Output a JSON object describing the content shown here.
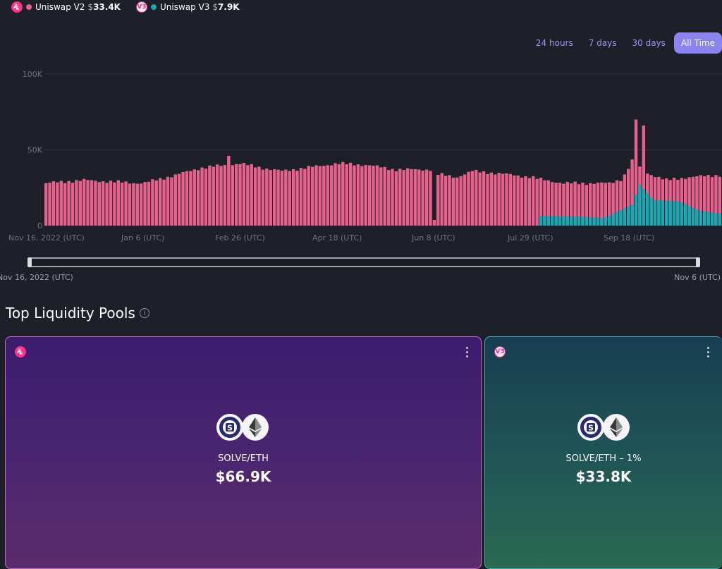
{
  "legend": [
    {
      "name": "Uniswap V2",
      "currency": "$",
      "value": "33.4K",
      "color": "#e8618c",
      "icon": "uniswap-v2-icon"
    },
    {
      "name": "Uniswap V3",
      "currency": "$",
      "value": "7.9K",
      "color": "#19a9b3",
      "icon": "uniswap-v3-icon"
    }
  ],
  "range_tabs": [
    {
      "label": "24 hours",
      "active": false
    },
    {
      "label": "7 days",
      "active": false
    },
    {
      "label": "30 days",
      "active": false
    },
    {
      "label": "All Time",
      "active": true
    }
  ],
  "chart_data": {
    "type": "bar",
    "stacked": true,
    "y_ticks": [
      "100K",
      "50K",
      "0"
    ],
    "ylim": [
      0,
      100000
    ],
    "x_ticks": [
      "Nov 16, 2022 (UTC)",
      "Jan 6 (UTC)",
      "Feb 26 (UTC)",
      "Apr 18 (UTC)",
      "Jun 8 (UTC)",
      "Jul 29 (UTC)",
      "Sep 18 (UTC)"
    ],
    "date_range": [
      "2022-11-16",
      "2023-11-06"
    ],
    "series": [
      {
        "name": "Uniswap V2",
        "color": "#e8618c",
        "control_points": [
          [
            "2022-11-16",
            28000
          ],
          [
            "2022-12-06",
            30000
          ],
          [
            "2022-12-20",
            29000
          ],
          [
            "2023-01-06",
            28000
          ],
          [
            "2023-01-22",
            33000
          ],
          [
            "2023-02-05",
            38000
          ],
          [
            "2023-02-26",
            41000
          ],
          [
            "2023-03-10",
            38000
          ],
          [
            "2023-03-20",
            36000
          ],
          [
            "2023-04-18",
            41000
          ],
          [
            "2023-05-04",
            40000
          ],
          [
            "2023-05-18",
            37000
          ],
          [
            "2023-06-07",
            37000
          ],
          [
            "2023-06-08",
            3000
          ],
          [
            "2023-06-09",
            34000
          ],
          [
            "2023-06-20",
            32000
          ],
          [
            "2023-06-28",
            36000
          ],
          [
            "2023-07-15",
            34000
          ],
          [
            "2023-07-29",
            32000
          ],
          [
            "2023-08-01",
            31000
          ],
          [
            "2023-08-15",
            28000
          ],
          [
            "2023-08-29",
            28000
          ],
          [
            "2023-09-08",
            28000
          ],
          [
            "2023-09-15",
            31000
          ],
          [
            "2023-09-18",
            38000
          ],
          [
            "2023-09-21",
            45000
          ],
          [
            "2023-09-25",
            36000
          ],
          [
            "2023-10-08",
            30000
          ],
          [
            "2023-10-20",
            32000
          ],
          [
            "2023-11-06",
            33400
          ]
        ],
        "spikes": [
          [
            "2023-02-20",
            46000
          ],
          [
            "2023-09-22",
            70000
          ],
          [
            "2023-09-26",
            66000
          ]
        ]
      },
      {
        "name": "Uniswap V3",
        "color": "#19a9b3",
        "control_points": [
          [
            "2023-08-01",
            0
          ],
          [
            "2023-08-02",
            6500
          ],
          [
            "2023-08-25",
            6000
          ],
          [
            "2023-09-05",
            5000
          ],
          [
            "2023-09-12",
            9000
          ],
          [
            "2023-09-20",
            14000
          ],
          [
            "2023-09-24",
            27000
          ],
          [
            "2023-10-01",
            17000
          ],
          [
            "2023-10-15",
            16000
          ],
          [
            "2023-10-25",
            10000
          ],
          [
            "2023-11-06",
            7900
          ]
        ]
      }
    ]
  },
  "slider": {
    "start_label": "Nov 16, 2022 (UTC)",
    "end_label": "Nov 6 (UTC)"
  },
  "section": {
    "title": "Top Liquidity Pools"
  },
  "pools": [
    {
      "pair": "SOLVE/ETH",
      "value": "$66.9K",
      "protocol": "uniswap-v2-icon"
    },
    {
      "pair": "SOLVE/ETH – 1%",
      "value": "$33.8K",
      "protocol": "uniswap-v3-icon"
    }
  ],
  "colors": {
    "background": "#1d2028",
    "accent": "#8b84f0"
  }
}
